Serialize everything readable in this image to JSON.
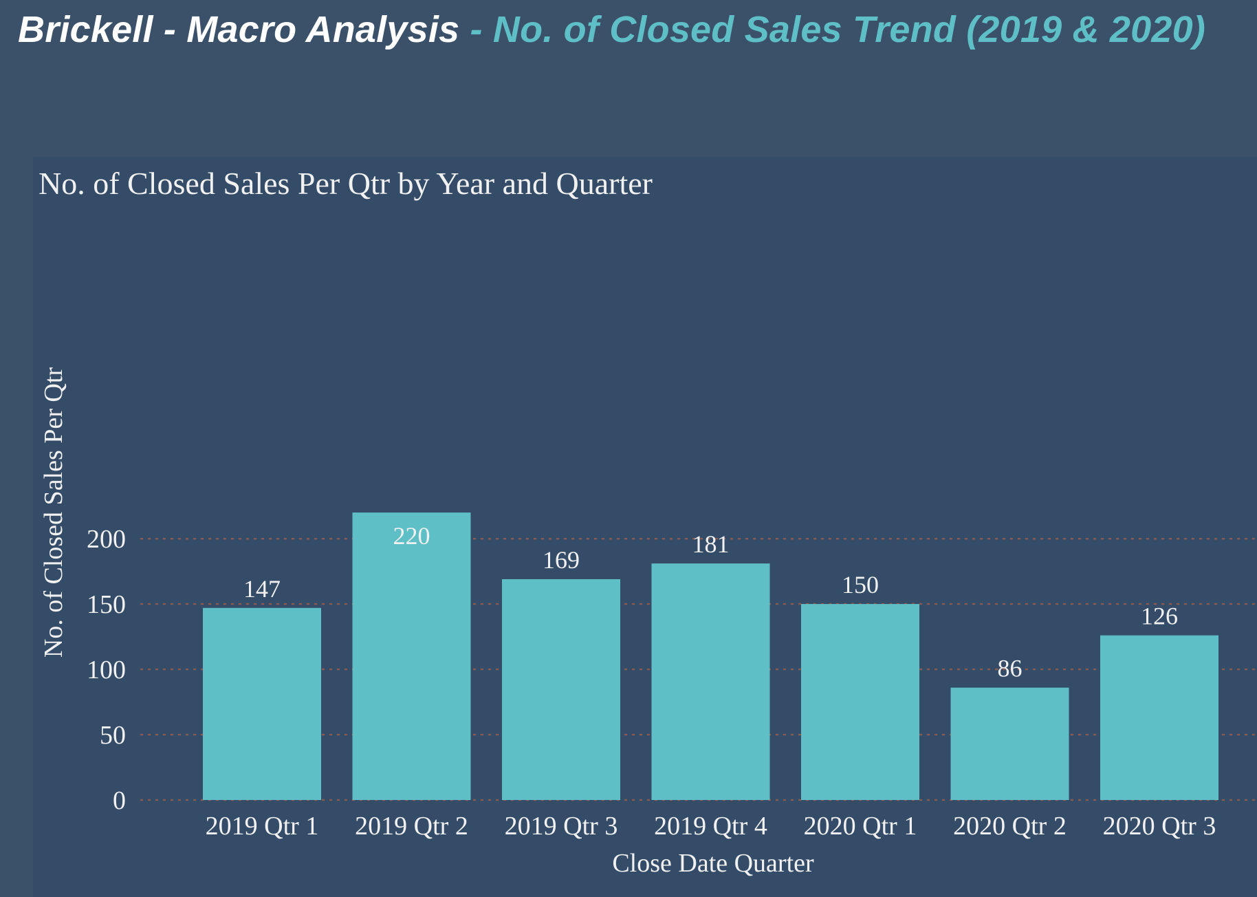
{
  "header": {
    "title_main": "Brickell - Macro Analysis",
    "title_sep": " - ",
    "title_accent": "No. of Closed Sales Trend (2019 & 2020)"
  },
  "colors": {
    "background": "#3b5069",
    "panel": "#354c68",
    "bar": "#5fbfc6",
    "grid": "#8a5a52",
    "title_accent": "#5fbfc6",
    "text": "#f1f1f1"
  },
  "chart_data": {
    "type": "bar",
    "title": "No. of Closed Sales Per Qtr by Year and Quarter",
    "xlabel": "Close Date Quarter",
    "ylabel": "No. of Closed Sales Per Qtr",
    "categories": [
      "2019 Qtr 1",
      "2019 Qtr 2",
      "2019 Qtr 3",
      "2019 Qtr 4",
      "2020 Qtr 1",
      "2020 Qtr 2",
      "2020 Qtr 3"
    ],
    "values": [
      147,
      220,
      169,
      181,
      150,
      86,
      126
    ],
    "data_labels": [
      "147",
      "220",
      "169",
      "181",
      "150",
      "86",
      "126"
    ],
    "yticks": [
      0,
      50,
      100,
      150,
      200
    ],
    "ytick_labels": [
      "0",
      "50",
      "100",
      "150",
      "200"
    ],
    "ylim": [
      0,
      220
    ],
    "grid": true,
    "grid_style": "dotted",
    "legend": "none"
  }
}
